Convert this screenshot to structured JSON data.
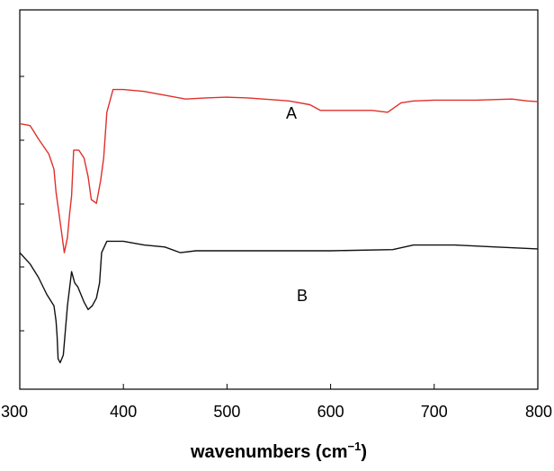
{
  "chart_data": {
    "type": "line",
    "xlabel": "wavenumbers (cm",
    "xlabel_sup": "−1",
    "xlabel_close": ")",
    "ylabel": "",
    "xlim": [
      300,
      800
    ],
    "ylim": [
      0,
      100
    ],
    "grid": false,
    "xticks": [
      "300",
      "400",
      "500",
      "600",
      "700",
      "800"
    ],
    "series": [
      {
        "name": "A",
        "color": "#e0302a",
        "points": [
          [
            300,
            70
          ],
          [
            310,
            69.5
          ],
          [
            318,
            66
          ],
          [
            328,
            62
          ],
          [
            333,
            58
          ],
          [
            335,
            52
          ],
          [
            340,
            42
          ],
          [
            343,
            36
          ],
          [
            346,
            40
          ],
          [
            348,
            46
          ],
          [
            350,
            51
          ],
          [
            352,
            63
          ],
          [
            357,
            63
          ],
          [
            362,
            61
          ],
          [
            366,
            56
          ],
          [
            369,
            50
          ],
          [
            374,
            49
          ],
          [
            378,
            55
          ],
          [
            381,
            61
          ],
          [
            384,
            73
          ],
          [
            390,
            79
          ],
          [
            400,
            79
          ],
          [
            420,
            78.5
          ],
          [
            440,
            77.5
          ],
          [
            460,
            76.5
          ],
          [
            480,
            76.8
          ],
          [
            500,
            77
          ],
          [
            520,
            76.8
          ],
          [
            550,
            76.2
          ],
          [
            560,
            76
          ],
          [
            580,
            75
          ],
          [
            590,
            73.5
          ],
          [
            600,
            73.5
          ],
          [
            620,
            73.5
          ],
          [
            640,
            73.5
          ],
          [
            655,
            73
          ],
          [
            668,
            75.5
          ],
          [
            680,
            76
          ],
          [
            700,
            76.2
          ],
          [
            740,
            76.2
          ],
          [
            775,
            76.5
          ],
          [
            790,
            76
          ],
          [
            800,
            75.8
          ]
        ]
      },
      {
        "name": "B",
        "color": "#111111",
        "points": [
          [
            300,
            36
          ],
          [
            310,
            33
          ],
          [
            318,
            29.5
          ],
          [
            326,
            25
          ],
          [
            333,
            22
          ],
          [
            335,
            18
          ],
          [
            336,
            14
          ],
          [
            337,
            8
          ],
          [
            339,
            7
          ],
          [
            342,
            9
          ],
          [
            346,
            22
          ],
          [
            350,
            31
          ],
          [
            353,
            28
          ],
          [
            356,
            27
          ],
          [
            362,
            23
          ],
          [
            366,
            21
          ],
          [
            370,
            22
          ],
          [
            374,
            24
          ],
          [
            377,
            28
          ],
          [
            379,
            36
          ],
          [
            384,
            39
          ],
          [
            400,
            39
          ],
          [
            420,
            38
          ],
          [
            440,
            37.5
          ],
          [
            455,
            36
          ],
          [
            470,
            36.5
          ],
          [
            500,
            36.5
          ],
          [
            600,
            36.5
          ],
          [
            660,
            36.8
          ],
          [
            680,
            38
          ],
          [
            720,
            38
          ],
          [
            760,
            37.5
          ],
          [
            800,
            37
          ]
        ]
      }
    ]
  }
}
